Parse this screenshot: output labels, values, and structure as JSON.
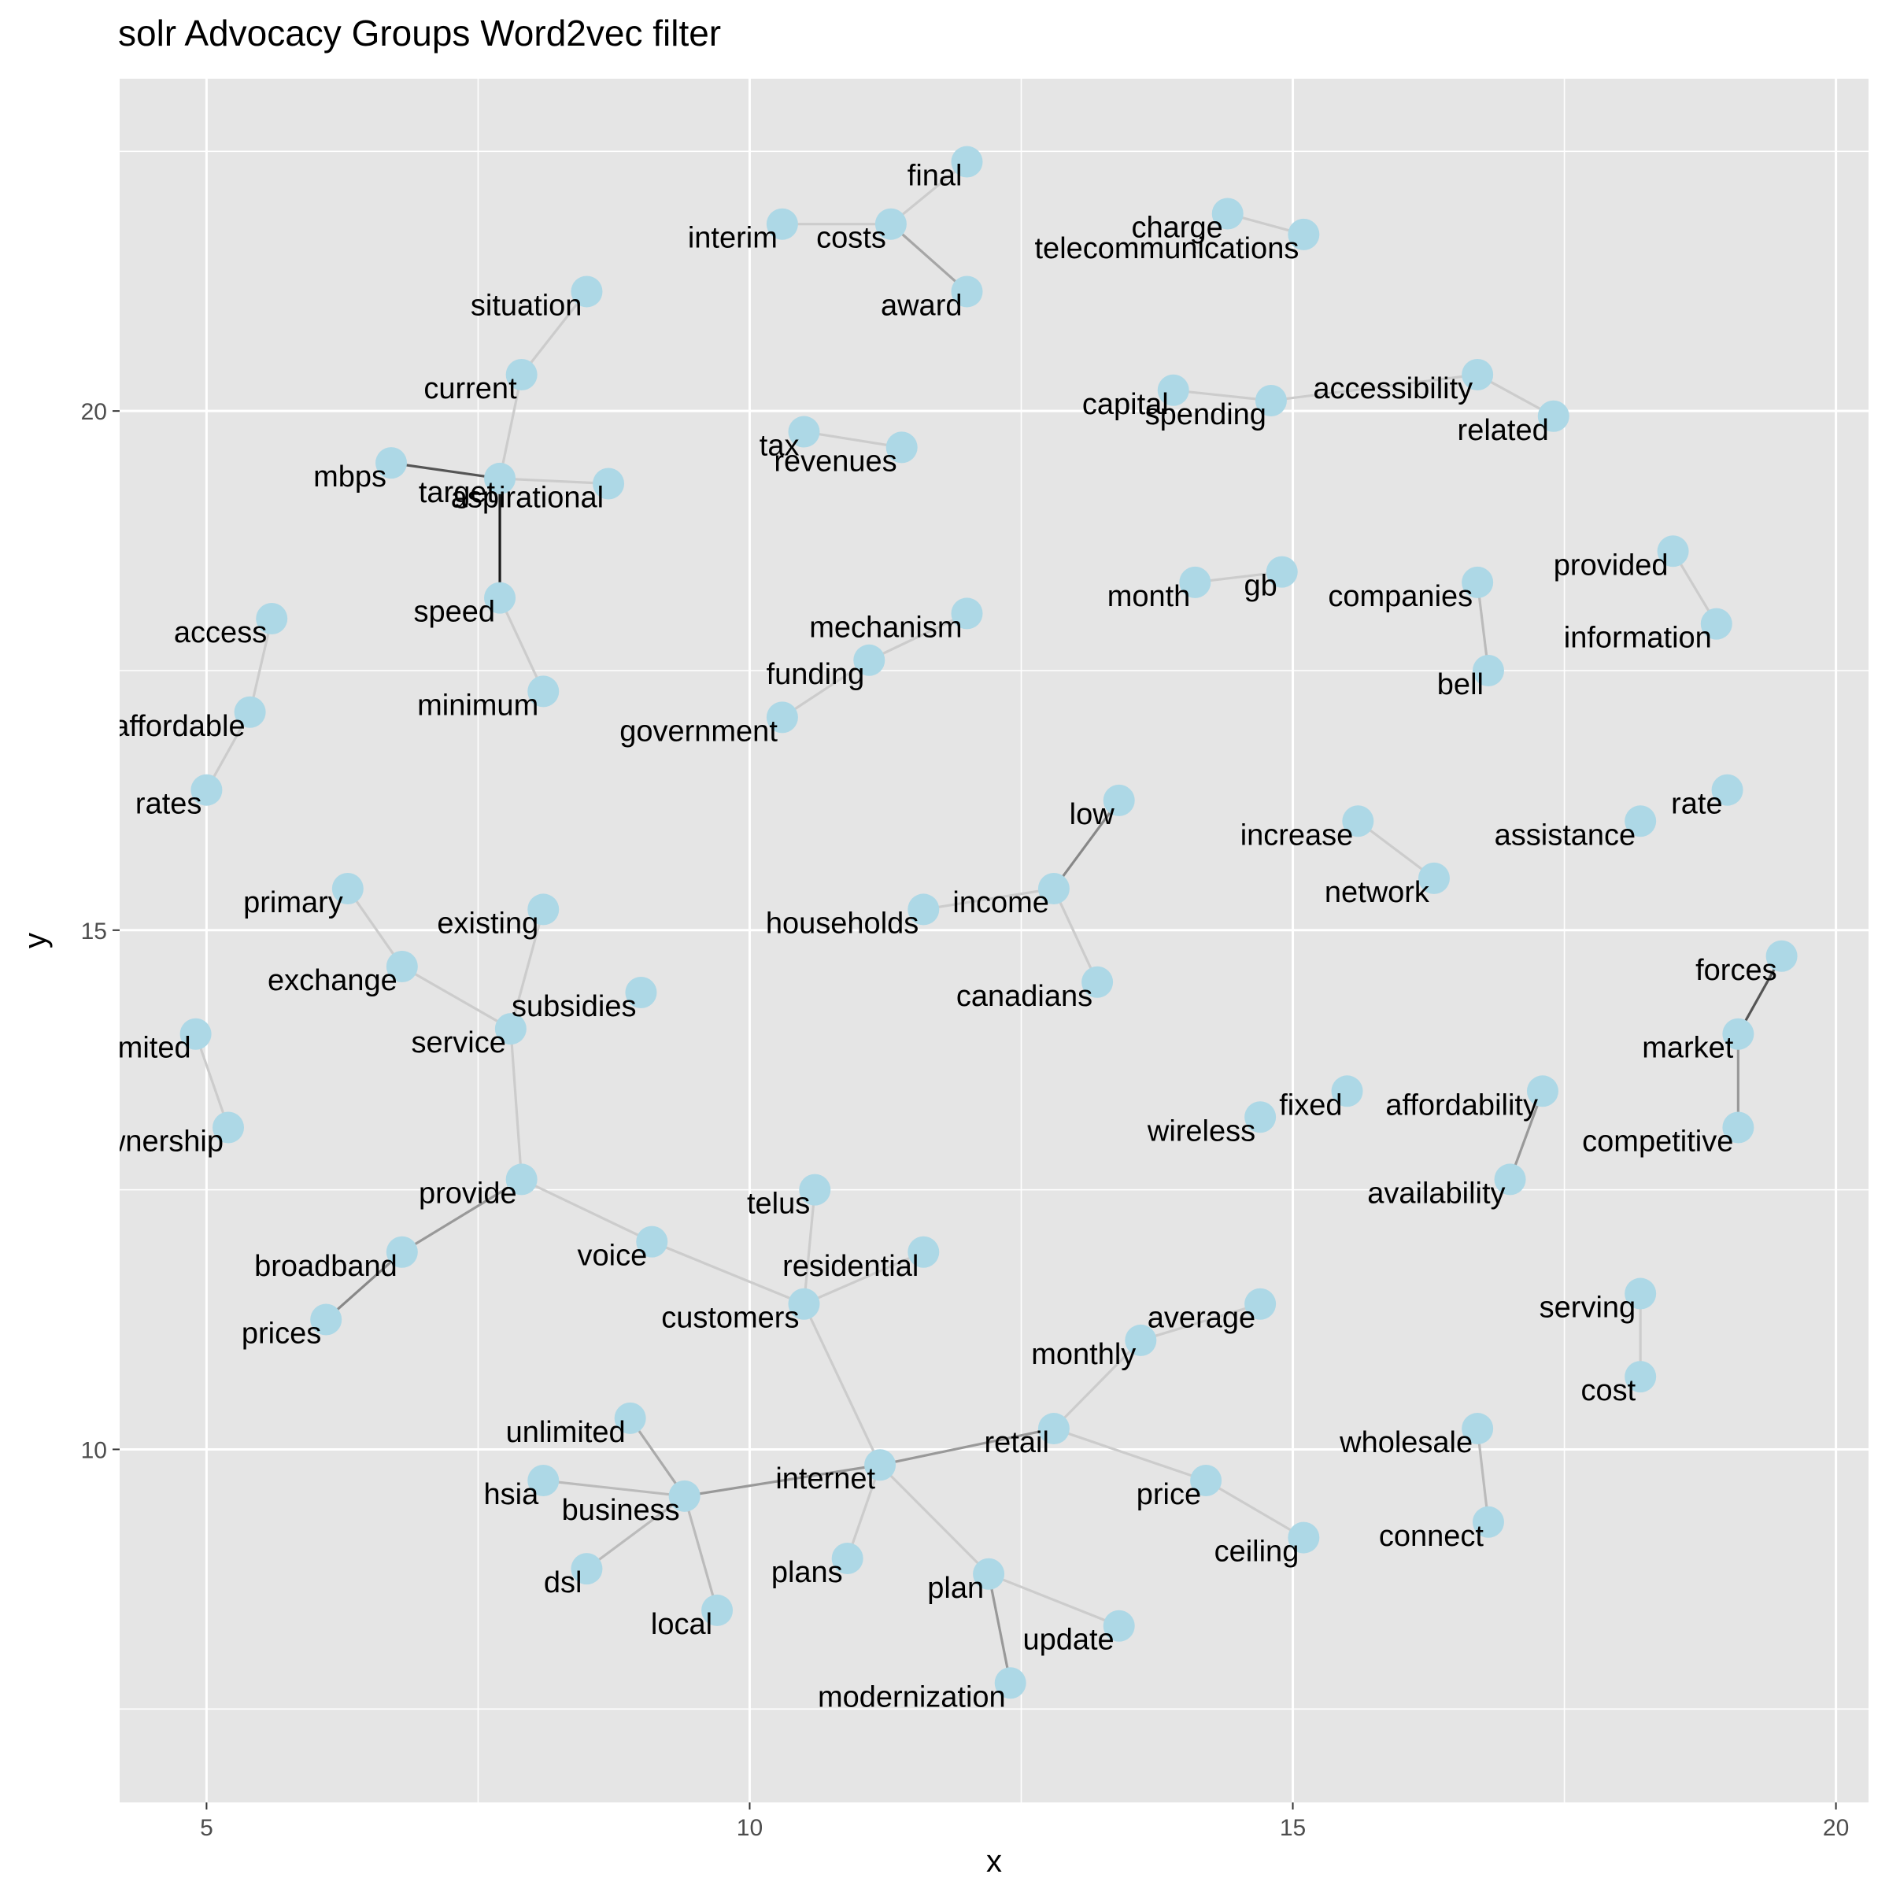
{
  "chart_data": {
    "type": "scatter",
    "title": "solr Advocacy Groups Word2vec filter",
    "xlabel": "x",
    "ylabel": "y",
    "xlim": [
      4.2,
      20.3
    ],
    "ylim": [
      6.6,
      23.2
    ],
    "x_ticks": [
      5,
      10,
      15,
      20
    ],
    "y_ticks": [
      10,
      15,
      20
    ],
    "grid": true,
    "point_color": "#add8e6",
    "panel_color": "#e5e5e5",
    "grid_color": "#ffffff",
    "points": [
      {
        "label": "final",
        "x": 12.0,
        "y": 22.4
      },
      {
        "label": "interim",
        "x": 10.3,
        "y": 21.8
      },
      {
        "label": "costs",
        "x": 11.3,
        "y": 21.8
      },
      {
        "label": "award",
        "x": 12.0,
        "y": 21.15
      },
      {
        "label": "charge",
        "x": 14.4,
        "y": 21.9
      },
      {
        "label": "telecommunications",
        "x": 15.1,
        "y": 21.7
      },
      {
        "label": "situation",
        "x": 8.5,
        "y": 21.15
      },
      {
        "label": "current",
        "x": 7.9,
        "y": 20.35
      },
      {
        "label": "mbps",
        "x": 6.7,
        "y": 19.5
      },
      {
        "label": "target",
        "x": 7.7,
        "y": 19.35
      },
      {
        "label": "aspirational",
        "x": 8.7,
        "y": 19.3
      },
      {
        "label": "speed",
        "x": 7.7,
        "y": 18.2
      },
      {
        "label": "minimum",
        "x": 8.1,
        "y": 17.3
      },
      {
        "label": "capital",
        "x": 13.9,
        "y": 20.2
      },
      {
        "label": "spending",
        "x": 14.8,
        "y": 20.1
      },
      {
        "label": "accessibility",
        "x": 16.7,
        "y": 20.35
      },
      {
        "label": "related",
        "x": 17.4,
        "y": 19.95
      },
      {
        "label": "tax",
        "x": 10.5,
        "y": 19.8
      },
      {
        "label": "revenues",
        "x": 11.4,
        "y": 19.65
      },
      {
        "label": "month",
        "x": 14.1,
        "y": 18.35
      },
      {
        "label": "gb",
        "x": 14.9,
        "y": 18.45
      },
      {
        "label": "companies",
        "x": 16.7,
        "y": 18.35
      },
      {
        "label": "bell",
        "x": 16.8,
        "y": 17.5
      },
      {
        "label": "provided",
        "x": 18.5,
        "y": 18.65
      },
      {
        "label": "information",
        "x": 18.9,
        "y": 17.95
      },
      {
        "label": "access",
        "x": 5.6,
        "y": 18.0
      },
      {
        "label": "affordable",
        "x": 5.4,
        "y": 17.1
      },
      {
        "label": "rates",
        "x": 5.0,
        "y": 16.35
      },
      {
        "label": "mechanism",
        "x": 12.0,
        "y": 18.05
      },
      {
        "label": "funding",
        "x": 11.1,
        "y": 17.6
      },
      {
        "label": "government",
        "x": 10.3,
        "y": 17.05
      },
      {
        "label": "low",
        "x": 13.4,
        "y": 16.25
      },
      {
        "label": "income",
        "x": 12.8,
        "y": 15.4
      },
      {
        "label": "households",
        "x": 11.6,
        "y": 15.2
      },
      {
        "label": "canadians",
        "x": 13.2,
        "y": 14.5
      },
      {
        "label": "increase",
        "x": 15.6,
        "y": 16.05
      },
      {
        "label": "network",
        "x": 16.3,
        "y": 15.5
      },
      {
        "label": "assistance",
        "x": 18.2,
        "y": 16.05
      },
      {
        "label": "rate",
        "x": 19.0,
        "y": 16.35
      },
      {
        "label": "primary",
        "x": 6.3,
        "y": 15.4
      },
      {
        "label": "existing",
        "x": 8.1,
        "y": 15.2
      },
      {
        "label": "exchange",
        "x": 6.8,
        "y": 14.65
      },
      {
        "label": "subsidies",
        "x": 9.0,
        "y": 14.4
      },
      {
        "label": "service",
        "x": 7.8,
        "y": 14.05
      },
      {
        "label": "forces",
        "x": 19.5,
        "y": 14.75
      },
      {
        "label": "market",
        "x": 19.1,
        "y": 14.0
      },
      {
        "label": "competitive",
        "x": 19.1,
        "y": 13.1
      },
      {
        "label": "limited",
        "x": 4.9,
        "y": 14.0
      },
      {
        "label": "ownership",
        "x": 5.2,
        "y": 13.1
      },
      {
        "label": "fixed",
        "x": 15.5,
        "y": 13.45
      },
      {
        "label": "wireless",
        "x": 14.7,
        "y": 13.2
      },
      {
        "label": "affordability",
        "x": 17.3,
        "y": 13.45
      },
      {
        "label": "availability",
        "x": 17.0,
        "y": 12.6
      },
      {
        "label": "provide",
        "x": 7.9,
        "y": 12.6
      },
      {
        "label": "telus",
        "x": 10.6,
        "y": 12.5
      },
      {
        "label": "broadband",
        "x": 6.8,
        "y": 11.9
      },
      {
        "label": "voice",
        "x": 9.1,
        "y": 12.0
      },
      {
        "label": "residential",
        "x": 11.6,
        "y": 11.9
      },
      {
        "label": "customers",
        "x": 10.5,
        "y": 11.4
      },
      {
        "label": "prices",
        "x": 6.1,
        "y": 11.25
      },
      {
        "label": "average",
        "x": 14.7,
        "y": 11.4
      },
      {
        "label": "monthly",
        "x": 13.6,
        "y": 11.05
      },
      {
        "label": "serving",
        "x": 18.2,
        "y": 11.5
      },
      {
        "label": "cost",
        "x": 18.2,
        "y": 10.7
      },
      {
        "label": "unlimited",
        "x": 8.9,
        "y": 10.3
      },
      {
        "label": "retail",
        "x": 12.8,
        "y": 10.2
      },
      {
        "label": "wholesale",
        "x": 16.7,
        "y": 10.2
      },
      {
        "label": "internet",
        "x": 11.2,
        "y": 9.85
      },
      {
        "label": "hsia",
        "x": 8.1,
        "y": 9.7
      },
      {
        "label": "business",
        "x": 9.4,
        "y": 9.55
      },
      {
        "label": "price",
        "x": 14.2,
        "y": 9.7
      },
      {
        "label": "connect",
        "x": 16.8,
        "y": 9.3
      },
      {
        "label": "ceiling",
        "x": 15.1,
        "y": 9.15
      },
      {
        "label": "dsl",
        "x": 8.5,
        "y": 8.85
      },
      {
        "label": "plans",
        "x": 10.9,
        "y": 8.95
      },
      {
        "label": "plan",
        "x": 12.2,
        "y": 8.8
      },
      {
        "label": "local",
        "x": 9.7,
        "y": 8.45
      },
      {
        "label": "update",
        "x": 13.4,
        "y": 8.3
      },
      {
        "label": "modernization",
        "x": 12.4,
        "y": 7.75
      }
    ],
    "edges": [
      [
        "interim",
        "costs",
        "#cccccc"
      ],
      [
        "costs",
        "final",
        "#cccccc"
      ],
      [
        "costs",
        "award",
        "#a6a6a6"
      ],
      [
        "charge",
        "telecommunications",
        "#cccccc"
      ],
      [
        "situation",
        "current",
        "#cccccc"
      ],
      [
        "current",
        "target",
        "#cccccc"
      ],
      [
        "mbps",
        "target",
        "#555555"
      ],
      [
        "target",
        "aspirational",
        "#cccccc"
      ],
      [
        "target",
        "speed",
        "#1a1a1a"
      ],
      [
        "speed",
        "minimum",
        "#cccccc"
      ],
      [
        "capital",
        "spending",
        "#cccccc"
      ],
      [
        "spending",
        "accessibility",
        "#cccccc"
      ],
      [
        "accessibility",
        "related",
        "#cccccc"
      ],
      [
        "tax",
        "revenues",
        "#cccccc"
      ],
      [
        "month",
        "gb",
        "#cccccc"
      ],
      [
        "companies",
        "bell",
        "#bbbbbb"
      ],
      [
        "provided",
        "information",
        "#cccccc"
      ],
      [
        "access",
        "affordable",
        "#cccccc"
      ],
      [
        "affordable",
        "rates",
        "#cccccc"
      ],
      [
        "mechanism",
        "funding",
        "#cccccc"
      ],
      [
        "funding",
        "government",
        "#cccccc"
      ],
      [
        "low",
        "income",
        "#888888"
      ],
      [
        "income",
        "households",
        "#cccccc"
      ],
      [
        "income",
        "canadians",
        "#cccccc"
      ],
      [
        "increase",
        "network",
        "#cccccc"
      ],
      [
        "primary",
        "exchange",
        "#cccccc"
      ],
      [
        "exchange",
        "service",
        "#cccccc"
      ],
      [
        "existing",
        "service",
        "#cccccc"
      ],
      [
        "service",
        "provide",
        "#cccccc"
      ],
      [
        "forces",
        "market",
        "#555555"
      ],
      [
        "market",
        "competitive",
        "#999999"
      ],
      [
        "limited",
        "ownership",
        "#cccccc"
      ],
      [
        "affordability",
        "availability",
        "#999999"
      ],
      [
        "provide",
        "broadband",
        "#999999"
      ],
      [
        "broadband",
        "prices",
        "#888888"
      ],
      [
        "provide",
        "voice",
        "#cccccc"
      ],
      [
        "voice",
        "customers",
        "#cccccc"
      ],
      [
        "telus",
        "customers",
        "#cccccc"
      ],
      [
        "residential",
        "customers",
        "#cccccc"
      ],
      [
        "customers",
        "internet",
        "#cccccc"
      ],
      [
        "average",
        "monthly",
        "#cccccc"
      ],
      [
        "monthly",
        "retail",
        "#cccccc"
      ],
      [
        "serving",
        "cost",
        "#cccccc"
      ],
      [
        "wholesale",
        "connect",
        "#bbbbbb"
      ],
      [
        "retail",
        "internet",
        "#999999"
      ],
      [
        "retail",
        "price",
        "#cccccc"
      ],
      [
        "price",
        "ceiling",
        "#cccccc"
      ],
      [
        "internet",
        "business",
        "#999999"
      ],
      [
        "unlimited",
        "business",
        "#aaaaaa"
      ],
      [
        "hsia",
        "business",
        "#bbbbbb"
      ],
      [
        "business",
        "dsl",
        "#bbbbbb"
      ],
      [
        "business",
        "local",
        "#bbbbbb"
      ],
      [
        "internet",
        "plans",
        "#cccccc"
      ],
      [
        "internet",
        "plan",
        "#cccccc"
      ],
      [
        "plan",
        "update",
        "#cccccc"
      ],
      [
        "plan",
        "modernization",
        "#999999"
      ]
    ]
  }
}
